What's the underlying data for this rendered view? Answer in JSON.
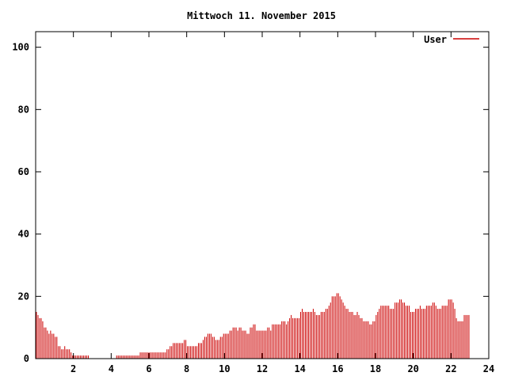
{
  "chart_data": {
    "type": "bar",
    "title": "Mittwoch 11. November 2015",
    "xlabel": "",
    "ylabel": "",
    "xlim": [
      0,
      24
    ],
    "ylim": [
      0,
      105
    ],
    "xticks": [
      2,
      4,
      6,
      8,
      10,
      12,
      14,
      16,
      18,
      20,
      22,
      24
    ],
    "yticks": [
      0,
      20,
      40,
      60,
      80,
      100
    ],
    "grid": false,
    "legend_position": "top-right",
    "series": [
      {
        "name": "User",
        "color": "#cc0000",
        "interval_hours": 0.0833,
        "values": [
          15,
          14,
          13,
          13,
          12,
          10,
          10,
          9,
          8,
          9,
          8,
          8,
          7,
          7,
          4,
          4,
          3,
          3,
          4,
          3,
          3,
          3,
          2,
          1,
          1,
          1,
          1,
          1,
          1,
          1,
          1,
          1,
          1,
          1,
          0,
          0,
          0,
          0,
          0,
          0,
          0,
          0,
          0,
          0,
          0,
          0,
          0,
          0,
          0,
          0,
          0,
          1,
          1,
          1,
          1,
          1,
          1,
          1,
          1,
          1,
          1,
          1,
          1,
          1,
          1,
          1,
          2,
          2,
          2,
          2,
          2,
          2,
          2,
          2,
          2,
          2,
          2,
          2,
          2,
          2,
          2,
          2,
          2,
          3,
          3,
          4,
          4,
          5,
          5,
          5,
          5,
          5,
          5,
          5,
          6,
          6,
          4,
          4,
          4,
          4,
          4,
          4,
          4,
          5,
          5,
          5,
          6,
          7,
          7,
          8,
          8,
          8,
          7,
          7,
          6,
          6,
          6,
          7,
          7,
          8,
          8,
          8,
          8,
          9,
          9,
          10,
          10,
          10,
          9,
          10,
          10,
          9,
          9,
          9,
          8,
          8,
          10,
          10,
          11,
          11,
          9,
          9,
          9,
          9,
          9,
          9,
          9,
          10,
          10,
          9,
          11,
          11,
          11,
          11,
          11,
          11,
          12,
          12,
          12,
          11,
          12,
          13,
          14,
          13,
          13,
          13,
          13,
          13,
          15,
          16,
          15,
          15,
          15,
          15,
          15,
          15,
          16,
          15,
          14,
          14,
          14,
          15,
          15,
          15,
          16,
          16,
          17,
          18,
          20,
          20,
          20,
          21,
          21,
          20,
          19,
          18,
          17,
          16,
          16,
          15,
          15,
          15,
          14,
          14,
          15,
          14,
          13,
          13,
          12,
          12,
          12,
          12,
          11,
          11,
          12,
          12,
          14,
          15,
          16,
          17,
          17,
          17,
          17,
          17,
          17,
          16,
          16,
          16,
          18,
          18,
          18,
          19,
          19,
          18,
          18,
          17,
          17,
          17,
          15,
          15,
          15,
          16,
          16,
          16,
          17,
          16,
          16,
          16,
          17,
          17,
          17,
          17,
          18,
          18,
          17,
          16,
          16,
          16,
          17,
          17,
          17,
          17,
          19,
          19,
          19,
          18,
          16,
          13,
          12,
          12,
          12,
          12,
          14,
          14,
          14,
          14
        ]
      }
    ]
  }
}
